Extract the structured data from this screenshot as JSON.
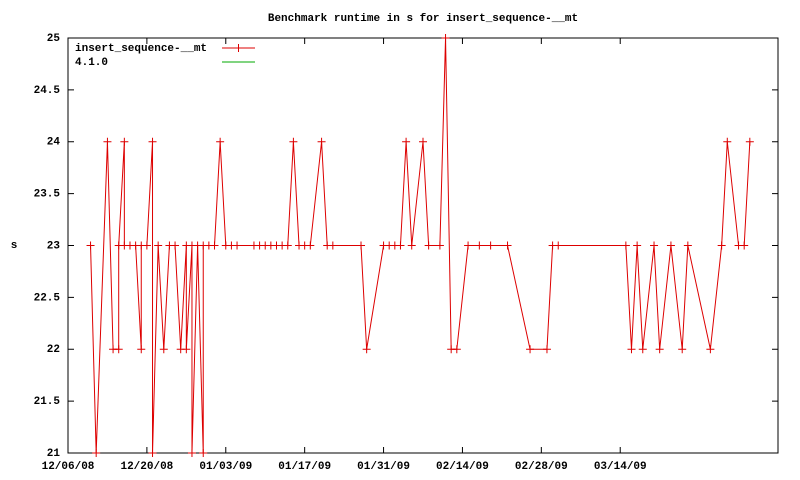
{
  "chart_data": {
    "type": "line",
    "title": "Benchmark runtime in s for insert_sequence-__mt",
    "y_label": "s",
    "xlim": [
      "12/06/08",
      "04/11/09"
    ],
    "xticks": [
      "12/06/08",
      "12/20/08",
      "01/03/09",
      "01/17/09",
      "01/31/09",
      "02/14/09",
      "02/28/09",
      "03/14/09"
    ],
    "ylim": [
      21,
      25
    ],
    "yticks": [
      21,
      21.5,
      22,
      22.5,
      23,
      23.5,
      24,
      24.5,
      25
    ],
    "legend": "top-left",
    "x": [
      "12/10/08",
      "12/11/08",
      "12/13/08",
      "12/14/08",
      "12/15/08",
      "12/15/08",
      "12/16/08",
      "12/16/08",
      "12/17/08",
      "12/18/08",
      "12/19/08",
      "12/19/08",
      "12/20/08",
      "12/21/08",
      "12/21/08",
      "12/22/08",
      "12/23/08",
      "12/24/08",
      "12/25/08",
      "12/26/08",
      "12/27/08",
      "12/27/08",
      "12/28/08",
      "12/28/08",
      "12/29/08",
      "12/30/08",
      "12/30/08",
      "12/31/08",
      "01/01/09",
      "01/02/09",
      "01/03/09",
      "01/04/09",
      "01/05/09",
      "01/08/09",
      "01/09/09",
      "01/10/09",
      "01/11/09",
      "01/12/09",
      "01/13/09",
      "01/14/09",
      "01/15/09",
      "01/16/09",
      "01/17/09",
      "01/18/09",
      "01/20/09",
      "01/21/09",
      "01/22/09",
      "01/27/09",
      "01/28/09",
      "01/31/09",
      "02/01/09",
      "02/02/09",
      "02/03/09",
      "02/04/09",
      "02/05/09",
      "02/07/09",
      "02/08/09",
      "02/10/09",
      "02/11/09",
      "02/12/09",
      "02/13/09",
      "02/15/09",
      "02/17/09",
      "02/19/09",
      "02/22/09",
      "02/26/09",
      "03/01/09",
      "03/02/09",
      "03/03/09",
      "03/15/09",
      "03/16/09",
      "03/17/09",
      "03/18/09",
      "03/20/09",
      "03/21/09",
      "03/23/09",
      "03/25/09",
      "03/26/09",
      "03/30/09",
      "04/01/09",
      "04/02/09",
      "04/04/09",
      "04/05/09",
      "04/06/09"
    ],
    "series": [
      {
        "name": "insert_sequence-__mt",
        "color": "#dd0000",
        "values": [
          23,
          21,
          24,
          22,
          22,
          23,
          24,
          23,
          23,
          23,
          22,
          23,
          23,
          24,
          21,
          23,
          22,
          23,
          23,
          22,
          23,
          22,
          23,
          21,
          23,
          21,
          23,
          23,
          23,
          24,
          23,
          23,
          23,
          23,
          23,
          23,
          23,
          23,
          23,
          23,
          24,
          23,
          23,
          23,
          24,
          23,
          23,
          23,
          22,
          23,
          23,
          23,
          23,
          24,
          23,
          24,
          23,
          23,
          25,
          22,
          22,
          23,
          23,
          23,
          23,
          22,
          22,
          23,
          23,
          23,
          22,
          23,
          22,
          23,
          22,
          23,
          22,
          23,
          22,
          23,
          24,
          23,
          23,
          24
        ]
      },
      {
        "name": "4.1.0",
        "color": "#00aa00",
        "values": [
          null,
          null,
          null,
          null,
          null,
          null,
          null,
          null,
          null,
          null,
          null,
          null,
          null,
          null,
          null,
          null,
          null,
          null,
          null,
          null,
          null,
          null,
          null,
          null,
          null,
          null,
          null,
          null,
          null,
          null,
          null,
          null,
          null,
          null,
          null,
          null,
          null,
          null,
          null,
          null,
          null,
          null,
          null,
          null,
          null,
          null,
          null,
          null,
          null,
          null,
          null,
          null,
          null,
          null,
          null,
          null,
          null,
          null,
          null,
          null,
          null,
          null,
          null,
          null,
          null,
          null,
          null,
          null,
          null,
          null,
          null,
          null,
          null,
          null,
          null,
          null,
          null,
          null,
          null,
          null,
          null,
          null,
          null,
          null
        ]
      }
    ]
  }
}
